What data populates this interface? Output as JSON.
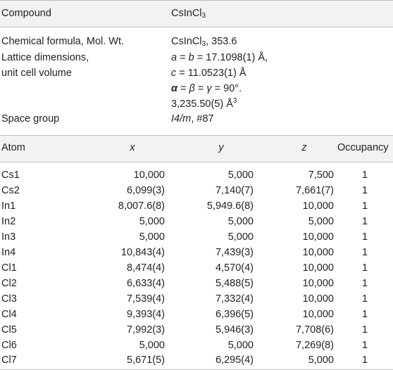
{
  "meta_header": {
    "compound_label": "Compound",
    "compound_value": {
      "base": "CsInCl",
      "sub": "3"
    }
  },
  "meta_rows": {
    "formula_label": "Chemical formula, Mol. Wt.",
    "formula_value": {
      "base": "CsInCl",
      "sub": "3",
      "rest": ", 353.6"
    },
    "lattice_label_1": "Lattice dimensions,",
    "lattice_label_2": "unit cell volume",
    "lattice_ab": {
      "a": "a",
      "eq1": " = ",
      "b": "b",
      "rest": " = 17.1098(1) Å,"
    },
    "lattice_c": {
      "c": "c",
      "rest": " = 11.0523(1) Å"
    },
    "angles": {
      "alpha": "α",
      "beta": "β",
      "gamma": "γ",
      "eq": " = ",
      "value": "90°."
    },
    "volume": {
      "value": "3,235.50(5) Å",
      "sup": "3"
    },
    "space_group_label": "Space group",
    "space_group_value": {
      "italic": "I4/m",
      "rest": ", #87"
    }
  },
  "atom_table": {
    "headers": {
      "atom": "Atom",
      "x": "x",
      "y": "y",
      "z": "z",
      "occupancy": "Occupancy"
    },
    "rows": [
      {
        "atom": "Cs1",
        "x": "10,000",
        "y": "5,000",
        "z": "7,500",
        "occupancy": "1"
      },
      {
        "atom": "Cs2",
        "x": "6,099(3)",
        "y": "7,140(7)",
        "z": "7,661(7)",
        "occupancy": "1"
      },
      {
        "atom": "In1",
        "x": "8,007.6(8)",
        "y": "5,949.6(8)",
        "z": "10,000",
        "occupancy": "1"
      },
      {
        "atom": "In2",
        "x": "5,000",
        "y": "5,000",
        "z": "5,000",
        "occupancy": "1"
      },
      {
        "atom": "In3",
        "x": "5,000",
        "y": "5,000",
        "z": "10,000",
        "occupancy": "1"
      },
      {
        "atom": "In4",
        "x": "10,843(4)",
        "y": "7,439(3)",
        "z": "10,000",
        "occupancy": "1"
      },
      {
        "atom": "Cl1",
        "x": "8,474(4)",
        "y": "4,570(4)",
        "z": "10,000",
        "occupancy": "1"
      },
      {
        "atom": "Cl2",
        "x": "6,633(4)",
        "y": "5,488(5)",
        "z": "10,000",
        "occupancy": "1"
      },
      {
        "atom": "Cl3",
        "x": "7,539(4)",
        "y": "7,332(4)",
        "z": "10,000",
        "occupancy": "1"
      },
      {
        "atom": "Cl4",
        "x": "9,393(4)",
        "y": "6,396(5)",
        "z": "10,000",
        "occupancy": "1"
      },
      {
        "atom": "Cl5",
        "x": "7,992(3)",
        "y": "5,946(3)",
        "z": "7,708(6)",
        "occupancy": "1"
      },
      {
        "atom": "Cl6",
        "x": "5,000",
        "y": "5,000",
        "z": "7,269(8)",
        "occupancy": "1"
      },
      {
        "atom": "Cl7",
        "x": "5,671(5)",
        "y": "6,295(4)",
        "z": "5,000",
        "occupancy": "1"
      }
    ]
  }
}
